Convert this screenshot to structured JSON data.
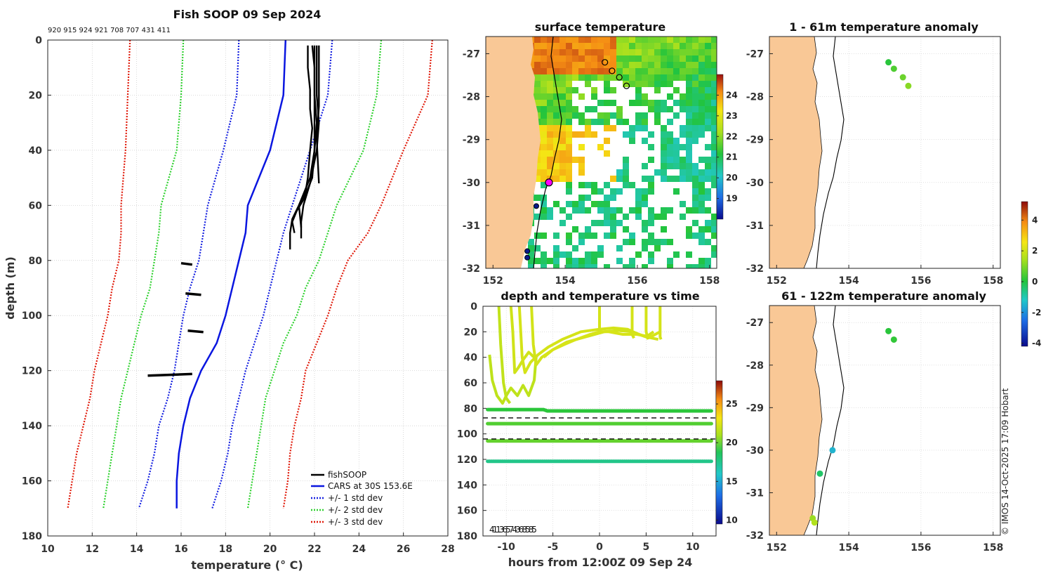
{
  "colors": {
    "land": "#f9c896",
    "fish": "#000000",
    "cars": "#0a16e0",
    "sd1": "#1520e0",
    "sd2": "#2fd12f",
    "sd3": "#e01a0a"
  },
  "chart_data": [
    {
      "id": "profile",
      "type": "line",
      "title": "Fish SOOP 09 Sep 2024",
      "subtitle": "920 915 924 921 708 707 431 411",
      "xlabel": "temperature (° C)",
      "ylabel": "depth (m)",
      "xlim": [
        10,
        28
      ],
      "ylim": [
        180,
        0
      ],
      "xticks": [
        10,
        12,
        14,
        16,
        18,
        20,
        22,
        24,
        26,
        28
      ],
      "yticks": [
        0,
        20,
        40,
        60,
        80,
        100,
        120,
        140,
        160,
        180
      ],
      "legend": [
        "fishSOOP",
        "CARS at 30S 153.6E",
        "+/- 1 std dev",
        "+/- 2 std dev",
        "+/- 3 std dev"
      ],
      "depth": [
        0,
        20,
        40,
        60,
        70,
        80,
        90,
        100,
        110,
        120,
        130,
        140,
        150,
        160,
        170
      ],
      "cars": [
        20.7,
        20.6,
        20.0,
        19.0,
        18.9,
        18.6,
        18.3,
        18.0,
        17.6,
        16.9,
        16.4,
        16.1,
        15.9,
        15.8,
        15.8
      ],
      "sd1_low": [
        18.6,
        18.5,
        17.9,
        17.2,
        17.0,
        16.8,
        16.4,
        16.1,
        15.9,
        15.7,
        15.4,
        15.0,
        14.8,
        14.5,
        14.1
      ],
      "sd1_high": [
        22.8,
        22.6,
        21.8,
        21.0,
        20.6,
        20.3,
        20.0,
        19.7,
        19.3,
        18.9,
        18.6,
        18.3,
        18.1,
        17.8,
        17.4
      ],
      "sd2_low": [
        16.1,
        16.0,
        15.8,
        15.1,
        15.0,
        14.8,
        14.6,
        14.2,
        13.9,
        13.6,
        13.3,
        13.1,
        12.9,
        12.7,
        12.5
      ],
      "sd2_high": [
        25.0,
        24.8,
        24.2,
        23.0,
        22.6,
        22.2,
        21.6,
        21.2,
        20.6,
        20.2,
        19.8,
        19.6,
        19.4,
        19.2,
        19.0
      ],
      "sd3_low": [
        13.7,
        13.6,
        13.5,
        13.3,
        13.3,
        13.2,
        12.9,
        12.7,
        12.4,
        12.1,
        11.9,
        11.6,
        11.3,
        11.1,
        10.9
      ],
      "sd3_high": [
        27.3,
        27.1,
        26.0,
        25.0,
        24.4,
        23.5,
        23.0,
        22.6,
        22.1,
        21.6,
        21.4,
        21.1,
        20.9,
        20.8,
        20.6
      ],
      "fish_casts": [
        {
          "t": [
            21.7,
            21.7,
            21.8,
            21.8,
            21.9,
            21.8,
            21.7,
            21.6,
            21.3,
            21.0,
            20.9,
            20.9
          ],
          "d": [
            2,
            10,
            18,
            25,
            32,
            40,
            50,
            55,
            60,
            65,
            70,
            76
          ]
        },
        {
          "t": [
            21.9,
            22.0,
            22.0,
            22.1,
            22.0,
            21.9,
            21.5,
            21.2,
            21.0,
            21.1
          ],
          "d": [
            2,
            10,
            20,
            30,
            40,
            50,
            58,
            62,
            66,
            70
          ]
        },
        {
          "t": [
            22.1,
            22.1,
            22.1,
            22.2,
            22.1,
            21.8,
            21.5,
            21.4,
            21.4
          ],
          "d": [
            2,
            10,
            20,
            30,
            40,
            52,
            60,
            66,
            72
          ]
        },
        {
          "t": [
            22.0,
            22.0,
            22.0,
            22.0,
            22.0,
            21.8,
            21.3,
            21.4
          ],
          "d": [
            2,
            10,
            20,
            30,
            40,
            50,
            60,
            68
          ]
        },
        {
          "t": [
            22.2,
            22.2,
            22.2,
            22.1,
            22.2
          ],
          "d": [
            2,
            12,
            24,
            36,
            52
          ]
        }
      ],
      "fish_bottom": [
        {
          "t": [
            16.0,
            16.5
          ],
          "d": [
            81,
            81.5
          ]
        },
        {
          "t": [
            16.2,
            16.9
          ],
          "d": [
            92,
            92.5
          ]
        },
        {
          "t": [
            16.3,
            17.0
          ],
          "d": [
            105.5,
            106
          ]
        },
        {
          "t": [
            14.5,
            15.6,
            16.5
          ],
          "d": [
            121.8,
            121.5,
            121.2
          ]
        }
      ]
    },
    {
      "id": "sst",
      "type": "heatmap",
      "title": "surface temperature",
      "xlim": [
        151.8,
        158.2
      ],
      "ylim": [
        -32,
        -26.6
      ],
      "xticks": [
        152,
        154,
        156,
        158
      ],
      "yticks": [
        -27,
        -28,
        -29,
        -30,
        -31,
        -32
      ],
      "colorbar": {
        "min": 18,
        "max": 25,
        "ticks": [
          19,
          20,
          21,
          22,
          23,
          24
        ]
      },
      "track": [
        [
          155.1,
          -27.2
        ],
        [
          155.3,
          -27.4
        ],
        [
          155.5,
          -27.55
        ],
        [
          155.7,
          -27.75
        ]
      ],
      "sites": [
        [
          153.55,
          -30.0
        ],
        [
          153.2,
          -30.55
        ],
        [
          152.95,
          -31.6
        ],
        [
          152.95,
          -31.75
        ]
      ]
    },
    {
      "id": "anom1",
      "type": "scatter",
      "title": "1 - 61m temperature anomaly",
      "xlim": [
        151.8,
        158.2
      ],
      "ylim": [
        -32,
        -26.6
      ],
      "xticks": [
        152,
        154,
        156,
        158
      ],
      "yticks": [
        -27,
        -28,
        -29,
        -30,
        -31,
        -32
      ],
      "points": [
        {
          "lon": 155.1,
          "lat": -27.2,
          "v": 0.1
        },
        {
          "lon": 155.25,
          "lat": -27.35,
          "v": 0.5
        },
        {
          "lon": 155.5,
          "lat": -27.55,
          "v": 0.8
        },
        {
          "lon": 155.65,
          "lat": -27.75,
          "v": 1.1
        }
      ]
    },
    {
      "id": "anom2",
      "type": "scatter",
      "title": "61 - 122m temperature anomaly",
      "xlim": [
        151.8,
        158.2
      ],
      "ylim": [
        -32,
        -26.6
      ],
      "xticks": [
        152,
        154,
        156,
        158
      ],
      "yticks": [
        -27,
        -28,
        -29,
        -30,
        -31,
        -32
      ],
      "points": [
        {
          "lon": 155.1,
          "lat": -27.2,
          "v": 0.1
        },
        {
          "lon": 155.25,
          "lat": -27.4,
          "v": 0.2
        },
        {
          "lon": 153.55,
          "lat": -30.0,
          "v": -1.7
        },
        {
          "lon": 153.2,
          "lat": -30.55,
          "v": -0.4
        },
        {
          "lon": 153.0,
          "lat": -31.6,
          "v": 1.3
        },
        {
          "lon": 153.05,
          "lat": -31.7,
          "v": 1.6
        }
      ],
      "colorbar": {
        "min": -4.2,
        "max": 5.2,
        "ticks": [
          -4,
          -2,
          0,
          2,
          4
        ]
      }
    },
    {
      "id": "timeseries",
      "type": "line",
      "title": "depth and temperature vs time",
      "xlabel": "hours from 12:00Z 09 Sep 24",
      "xlim": [
        -12.5,
        12.5
      ],
      "ylim": [
        180,
        0
      ],
      "xticks": [
        -10,
        -5,
        0,
        5,
        10
      ],
      "yticks": [
        0,
        20,
        40,
        60,
        80,
        100,
        120,
        140,
        160,
        180
      ],
      "dashed_depths": [
        87.5,
        104
      ],
      "overlap_label": "41136574368585",
      "colorbar": {
        "min": 9.5,
        "max": 28,
        "ticks": [
          10,
          15,
          20,
          25
        ]
      },
      "traces": [
        {
          "t": [
            -11.8,
            -11.5,
            -11.0,
            -10.4,
            -10.0,
            -9.5,
            -8.8,
            -8.2,
            -7.6,
            -7.0,
            -6.8
          ],
          "d": [
            38,
            58,
            70,
            76,
            70,
            64,
            70,
            62,
            70,
            58,
            40
          ],
          "temp": 21.4
        },
        {
          "t": [
            -10.8,
            -10.6,
            -10.3,
            -10.0,
            -9.6
          ],
          "d": [
            0,
            30,
            60,
            72,
            76
          ],
          "temp": 21.5
        },
        {
          "t": [
            -9.5,
            -9.3,
            -9.1,
            -8.7,
            -8.2,
            -7.6,
            -7.0
          ],
          "d": [
            0,
            20,
            52,
            48,
            42,
            36,
            40
          ],
          "temp": 22.0
        },
        {
          "t": [
            -8.6,
            -8.3,
            -8.0,
            -7.4,
            -6.6,
            -5.5,
            -4.0,
            -2.0,
            0.0,
            1.5,
            3.0,
            4.2,
            5.0,
            5.8
          ],
          "d": [
            0,
            40,
            52,
            44,
            38,
            32,
            26,
            20,
            18,
            17,
            18,
            22,
            24,
            20
          ],
          "temp": 22.2
        },
        {
          "t": [
            -7.3,
            -7.1,
            -6.8,
            -6.2,
            -5.0,
            -3.5,
            -1.5,
            0.5,
            2.0,
            3.5,
            5.0,
            6.3
          ],
          "d": [
            0,
            30,
            46,
            40,
            34,
            28,
            24,
            20,
            19,
            20,
            24,
            26
          ],
          "temp": 22.1
        },
        {
          "t": [
            -6.0,
            -5.0,
            -3.8,
            -2.5,
            -1.0,
            0.0,
            1.0,
            2.5,
            4.0,
            5.5,
            6.5
          ],
          "d": [
            40,
            34,
            30,
            26,
            22,
            20,
            20,
            22,
            22,
            24,
            20
          ],
          "temp": 22.3
        },
        {
          "t": [
            0.0,
            0.0
          ],
          "d": [
            0,
            20
          ],
          "temp": 22.2
        },
        {
          "t": [
            3.5,
            3.5,
            3.7
          ],
          "d": [
            0,
            22,
            25
          ],
          "temp": 22.2
        },
        {
          "t": [
            5.0,
            5.0,
            5.2
          ],
          "d": [
            0,
            20,
            26
          ],
          "temp": 22.2
        },
        {
          "t": [
            6.5,
            6.5,
            6.6
          ],
          "d": [
            0,
            24,
            26
          ],
          "temp": 22.2
        }
      ],
      "bands": [
        {
          "t": [
            -12,
            -6.0,
            -5.6,
            12
          ],
          "d": [
            81,
            81,
            82,
            82
          ],
          "temp": 18.0
        },
        {
          "t": [
            -12,
            12
          ],
          "d": [
            92,
            92
          ],
          "temp": 18.8
        },
        {
          "t": [
            -12,
            12
          ],
          "d": [
            105.5,
            105.5
          ],
          "temp": 19.2
        },
        {
          "t": [
            -12,
            12
          ],
          "d": [
            121.5,
            121.5
          ],
          "temp": 16.3
        }
      ]
    }
  ],
  "credit": "© IMOS 14-Oct-2025 17:09 Hobart"
}
